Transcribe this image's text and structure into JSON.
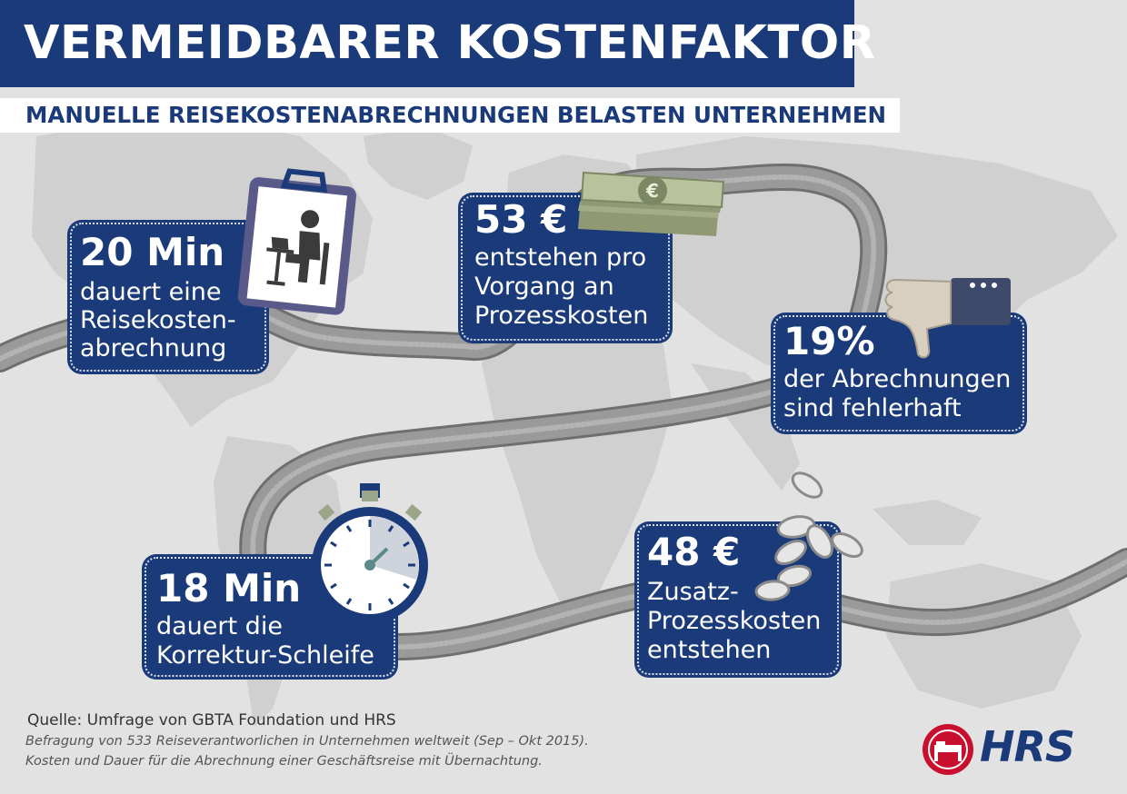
{
  "title": "VERMEIDBARER KOSTENFAKTOR",
  "subtitle": "MANUELLE REISEKOSTENABRECHNUNGEN BELASTEN UNTERNEHMEN",
  "stats": [
    {
      "value": "20 Min",
      "lines": [
        "dauert eine",
        "Reisekosten-",
        "abrechnung"
      ],
      "icon": "clipboard-person-laptop-icon"
    },
    {
      "value": "53 €",
      "lines": [
        "entstehen pro",
        "Vorgang an",
        "Prozesskosten"
      ],
      "icon": "euro-banknote-stack-icon"
    },
    {
      "value": "19%",
      "lines": [
        "der Abrechnungen",
        "sind fehlerhaft"
      ],
      "icon": "thumbs-down-icon"
    },
    {
      "value": "18 Min",
      "lines": [
        "dauert die",
        "Korrektur-Schleife"
      ],
      "icon": "stopwatch-icon"
    },
    {
      "value": "48 €",
      "lines": [
        "Zusatz-",
        "Prozesskosten",
        "entstehen"
      ],
      "icon": "coins-icon"
    }
  ],
  "source": "Quelle: Umfrage von GBTA Foundation und HRS",
  "notes": [
    "Befragung von 533 Reiseverantworlichen in Unternehmen weltweit (Sep – Okt 2015).",
    "Kosten und Dauer für die Abrechnung einer Geschäftsreise mit Übernachtung."
  ],
  "logo": {
    "text": "HRS",
    "icon": "hrs-bed-logo-icon"
  },
  "colors": {
    "navy": "#1a3a7a",
    "background": "#e2e2e2",
    "map": "#d0d0d0",
    "road": "#8e8e8e",
    "logo_red": "#c8102e"
  }
}
